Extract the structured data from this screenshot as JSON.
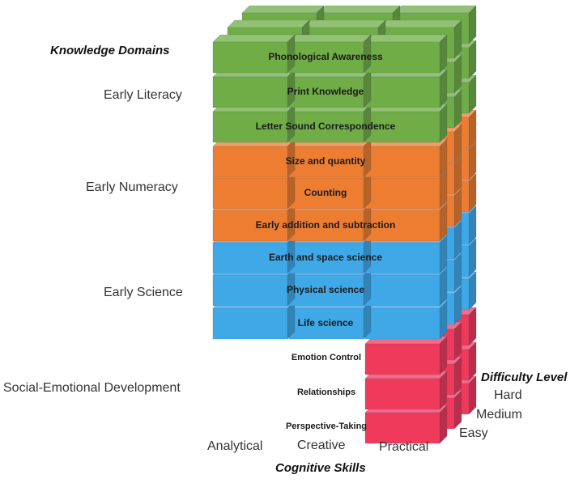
{
  "axes": {
    "knowledge_domains": "Knowledge Domains",
    "cognitive_skills": "Cognitive Skills",
    "difficulty_level": "Difficulty Level"
  },
  "domains": [
    "Early Literacy",
    "Early Numeracy",
    "Early Science",
    "Social-Emotional Development"
  ],
  "skills": [
    "Analytical",
    "Creative",
    "Practical"
  ],
  "difficulty": [
    "Hard",
    "Medium",
    "Easy"
  ],
  "rows": [
    {
      "label": "Phonological Awareness",
      "domain": "Early Literacy"
    },
    {
      "label": "Print Knowledge",
      "domain": "Early Literacy"
    },
    {
      "label": "Letter Sound Correspondence",
      "domain": "Early Literacy"
    },
    {
      "label": "Size and quantity",
      "domain": "Early Numeracy"
    },
    {
      "label": "Counting",
      "domain": "Early Numeracy"
    },
    {
      "label": "Early addition and subtraction",
      "domain": "Early Numeracy"
    },
    {
      "label": "Earth and space science",
      "domain": "Early Science"
    },
    {
      "label": "Physical science",
      "domain": "Early Science"
    },
    {
      "label": "Life science",
      "domain": "Early Science"
    },
    {
      "label": "Emotion Control",
      "domain": "Social-Emotional Development"
    },
    {
      "label": "Relationships",
      "domain": "Social-Emotional Development"
    },
    {
      "label": "Perspective-Taking",
      "domain": "Social-Emotional Development"
    }
  ],
  "colors": {
    "Early Literacy": "#70ad47",
    "Early Numeracy": "#ed7d31",
    "Early Science": "#3fa9e8",
    "Social-Emotional Development": "#f03a5c"
  }
}
